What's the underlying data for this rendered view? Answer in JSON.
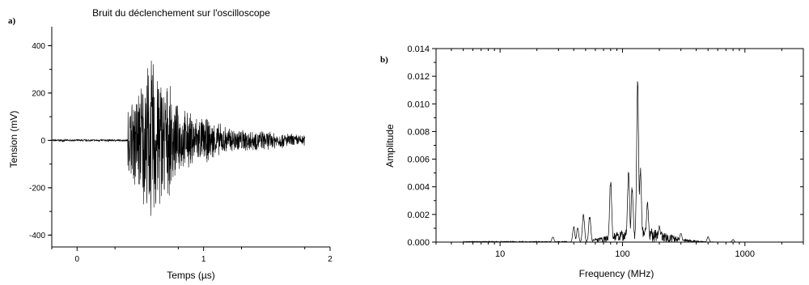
{
  "chart_data": [
    {
      "panel_label": "a)",
      "type": "line",
      "title": "Bruit du déclenchement sur l'oscilloscope",
      "xlabel": "Temps (µs)",
      "ylabel": "Tension (mV)",
      "xlim": [
        -0.2,
        2.0
      ],
      "ylim": [
        -450,
        480
      ],
      "xticks": [
        0,
        1,
        2
      ],
      "xtick_labels": [
        "0",
        "1",
        "2"
      ],
      "yticks": [
        -400,
        -200,
        0,
        200,
        400
      ],
      "ytick_labels": [
        "-400",
        "-200",
        "0",
        "200",
        "400"
      ],
      "grid": false,
      "series": [
        {
          "color": "#000000",
          "x_range": [
            -0.2,
            1.8
          ],
          "segments": [
            {
              "x": [
                -0.2,
                0.4
              ],
              "amplitude": [
                5,
                5
              ]
            },
            {
              "x": [
                0.4,
                0.6
              ],
              "amplitude": [
                150,
                400
              ]
            },
            {
              "x": [
                0.6,
                0.8
              ],
              "amplitude": [
                400,
                150
              ]
            },
            {
              "x": [
                0.8,
                1.2
              ],
              "amplitude": [
                150,
                60
              ]
            },
            {
              "x": [
                1.2,
                1.8
              ],
              "amplitude": [
                60,
                25
              ]
            }
          ]
        }
      ]
    },
    {
      "panel_label": "b)",
      "type": "line",
      "xscale": "log",
      "xlabel": "Frequency (MHz)",
      "ylabel": "Amplitude",
      "xlim": [
        3,
        3000
      ],
      "ylim": [
        0,
        0.014
      ],
      "xticks": [
        10,
        100,
        1000
      ],
      "xtick_labels": [
        "10",
        "100",
        "1000"
      ],
      "yticks": [
        0,
        0.002,
        0.004,
        0.006,
        0.008,
        0.01,
        0.012,
        0.014
      ],
      "ytick_labels": [
        "0.000",
        "0.002",
        "0.004",
        "0.006",
        "0.008",
        "0.010",
        "0.012",
        "0.014"
      ],
      "grid": false,
      "series": [
        {
          "color": "#000000",
          "peaks": [
            {
              "x": 27,
              "y": 0.0004
            },
            {
              "x": 40,
              "y": 0.0012
            },
            {
              "x": 43,
              "y": 0.0011
            },
            {
              "x": 48,
              "y": 0.0022
            },
            {
              "x": 54,
              "y": 0.002
            },
            {
              "x": 80,
              "y": 0.0049
            },
            {
              "x": 112,
              "y": 0.0055
            },
            {
              "x": 120,
              "y": 0.0042
            },
            {
              "x": 133,
              "y": 0.012
            },
            {
              "x": 140,
              "y": 0.0055
            },
            {
              "x": 160,
              "y": 0.003
            },
            {
              "x": 200,
              "y": 0.0012
            },
            {
              "x": 300,
              "y": 0.0007
            },
            {
              "x": 500,
              "y": 0.0004
            },
            {
              "x": 800,
              "y": 0.0002
            }
          ]
        }
      ]
    }
  ]
}
